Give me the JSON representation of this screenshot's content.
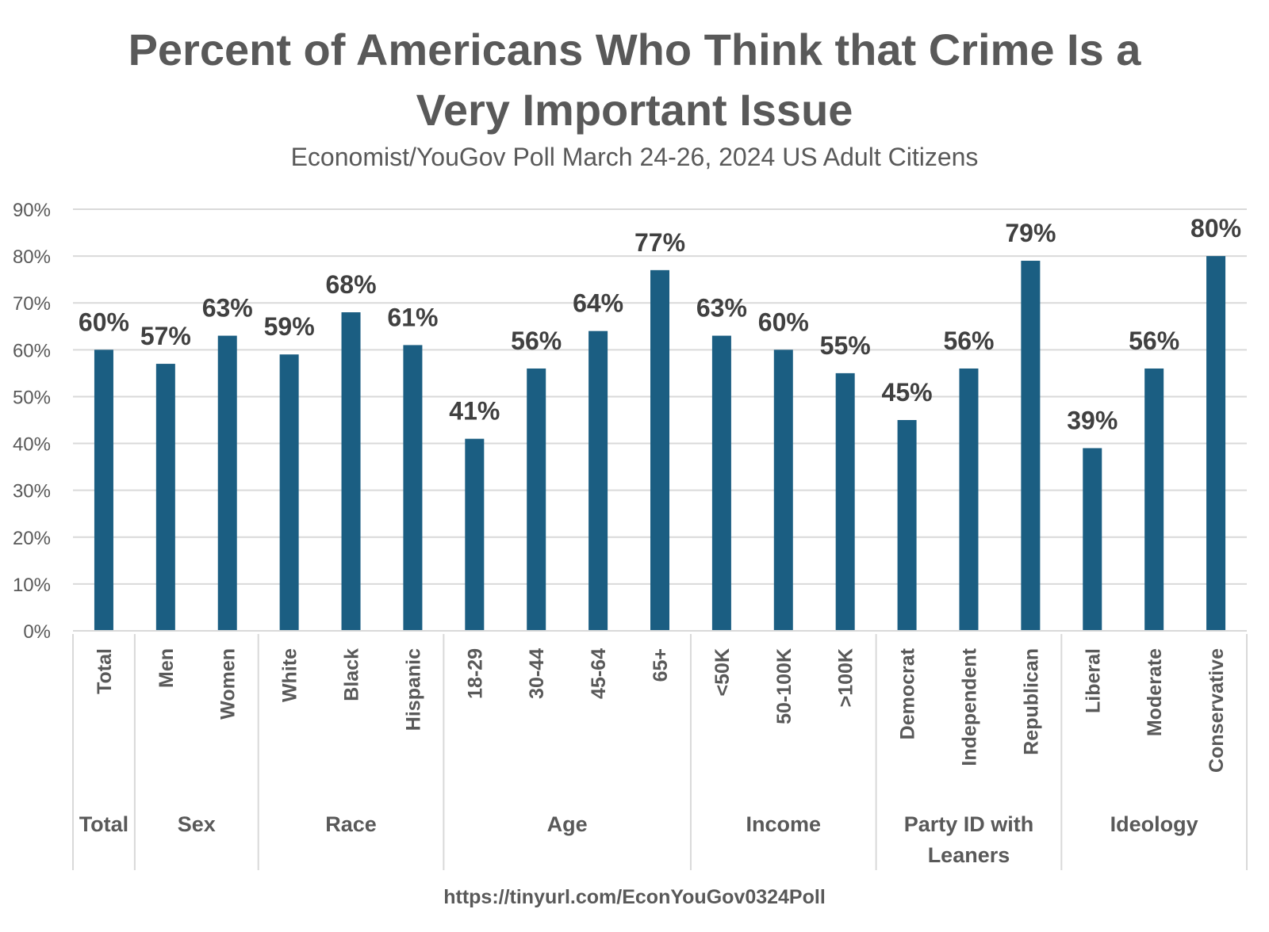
{
  "chart_data": {
    "type": "bar",
    "title_line1": "Percent of Americans Who Think that Crime Is a",
    "title_line2": "Very Important Issue",
    "subtitle": "Economist/YouGov Poll March 24-26, 2024 US Adult Citizens",
    "source": "https://tinyurl.com/EconYouGov0324Poll",
    "ylim": [
      0,
      90
    ],
    "yticks": [
      0,
      10,
      20,
      30,
      40,
      50,
      60,
      70,
      80,
      90
    ],
    "ytick_labels": [
      "0%",
      "10%",
      "20%",
      "30%",
      "40%",
      "50%",
      "60%",
      "70%",
      "80%",
      "90%"
    ],
    "grid": true,
    "bar_color": "#1b5e82",
    "categories": [
      "Total",
      "Men",
      "Women",
      "White",
      "Black",
      "Hispanic",
      "18-29",
      "30-44",
      "45-64",
      "65+",
      "<50K",
      "50-100K",
      ">100K",
      "Democrat",
      "Independent",
      "Republican",
      "Liberal",
      "Moderate",
      "Conservative"
    ],
    "values": [
      60,
      57,
      63,
      59,
      68,
      61,
      41,
      56,
      64,
      77,
      63,
      60,
      55,
      45,
      56,
      79,
      39,
      56,
      80
    ],
    "data_labels": [
      "60%",
      "57%",
      "63%",
      "59%",
      "68%",
      "61%",
      "41%",
      "56%",
      "64%",
      "77%",
      "63%",
      "60%",
      "55%",
      "45%",
      "56%",
      "79%",
      "39%",
      "56%",
      "80%"
    ],
    "groups": [
      {
        "label": [
          "Total"
        ],
        "count": 1
      },
      {
        "label": [
          "Sex"
        ],
        "count": 2
      },
      {
        "label": [
          "Race"
        ],
        "count": 3
      },
      {
        "label": [
          "Age"
        ],
        "count": 4
      },
      {
        "label": [
          "Income"
        ],
        "count": 3
      },
      {
        "label": [
          "Party ID with",
          "Leaners"
        ],
        "count": 3
      },
      {
        "label": [
          "Ideology"
        ],
        "count": 3
      }
    ]
  }
}
